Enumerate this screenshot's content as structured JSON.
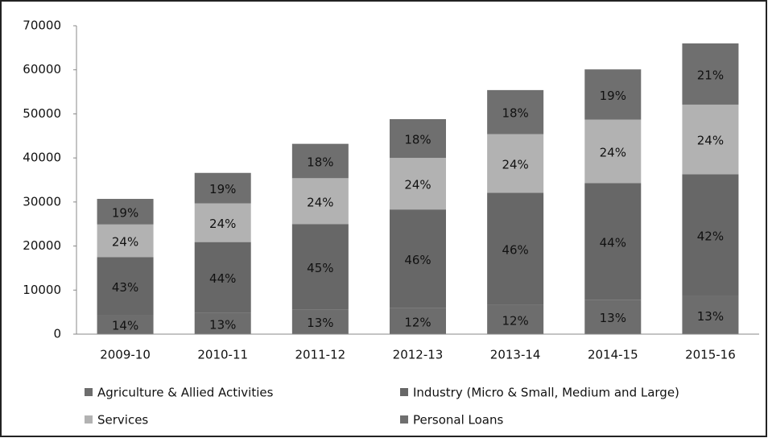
{
  "chart_data": {
    "type": "stacked-bar",
    "categories": [
      "2009-10",
      "2010-11",
      "2011-12",
      "2012-13",
      "2013-14",
      "2014-15",
      "2015-16"
    ],
    "series": [
      {
        "name": "Agriculture & Allied Activities",
        "color": "#6d6d6d",
        "values": [
          4300,
          4800,
          5600,
          5900,
          6600,
          7800,
          8600
        ],
        "share_labels": [
          "14%",
          "13%",
          "13%",
          "12%",
          "12%",
          "13%",
          "13%"
        ]
      },
      {
        "name": "Industry (Micro & Small, Medium and Large)",
        "color": "#676767",
        "values": [
          13200,
          16100,
          19400,
          22400,
          25500,
          26500,
          27700
        ],
        "share_labels": [
          "43%",
          "44%",
          "45%",
          "46%",
          "46%",
          "44%",
          "42%"
        ]
      },
      {
        "name": "Services",
        "color": "#b2b2b2",
        "values": [
          7400,
          8800,
          10400,
          11700,
          13300,
          14400,
          15800
        ],
        "share_labels": [
          "24%",
          "24%",
          "24%",
          "24%",
          "24%",
          "24%",
          "24%"
        ]
      },
      {
        "name": "Personal Loans",
        "color": "#6f6f6f",
        "values": [
          5800,
          6900,
          7800,
          8800,
          10000,
          11400,
          13900
        ],
        "share_labels": [
          "19%",
          "19%",
          "18%",
          "18%",
          "18%",
          "19%",
          "21%"
        ]
      }
    ],
    "ylim": [
      0,
      70000
    ],
    "yticks": [
      0,
      10000,
      20000,
      30000,
      40000,
      50000,
      60000,
      70000
    ],
    "grid": false,
    "legend": "bottom"
  }
}
